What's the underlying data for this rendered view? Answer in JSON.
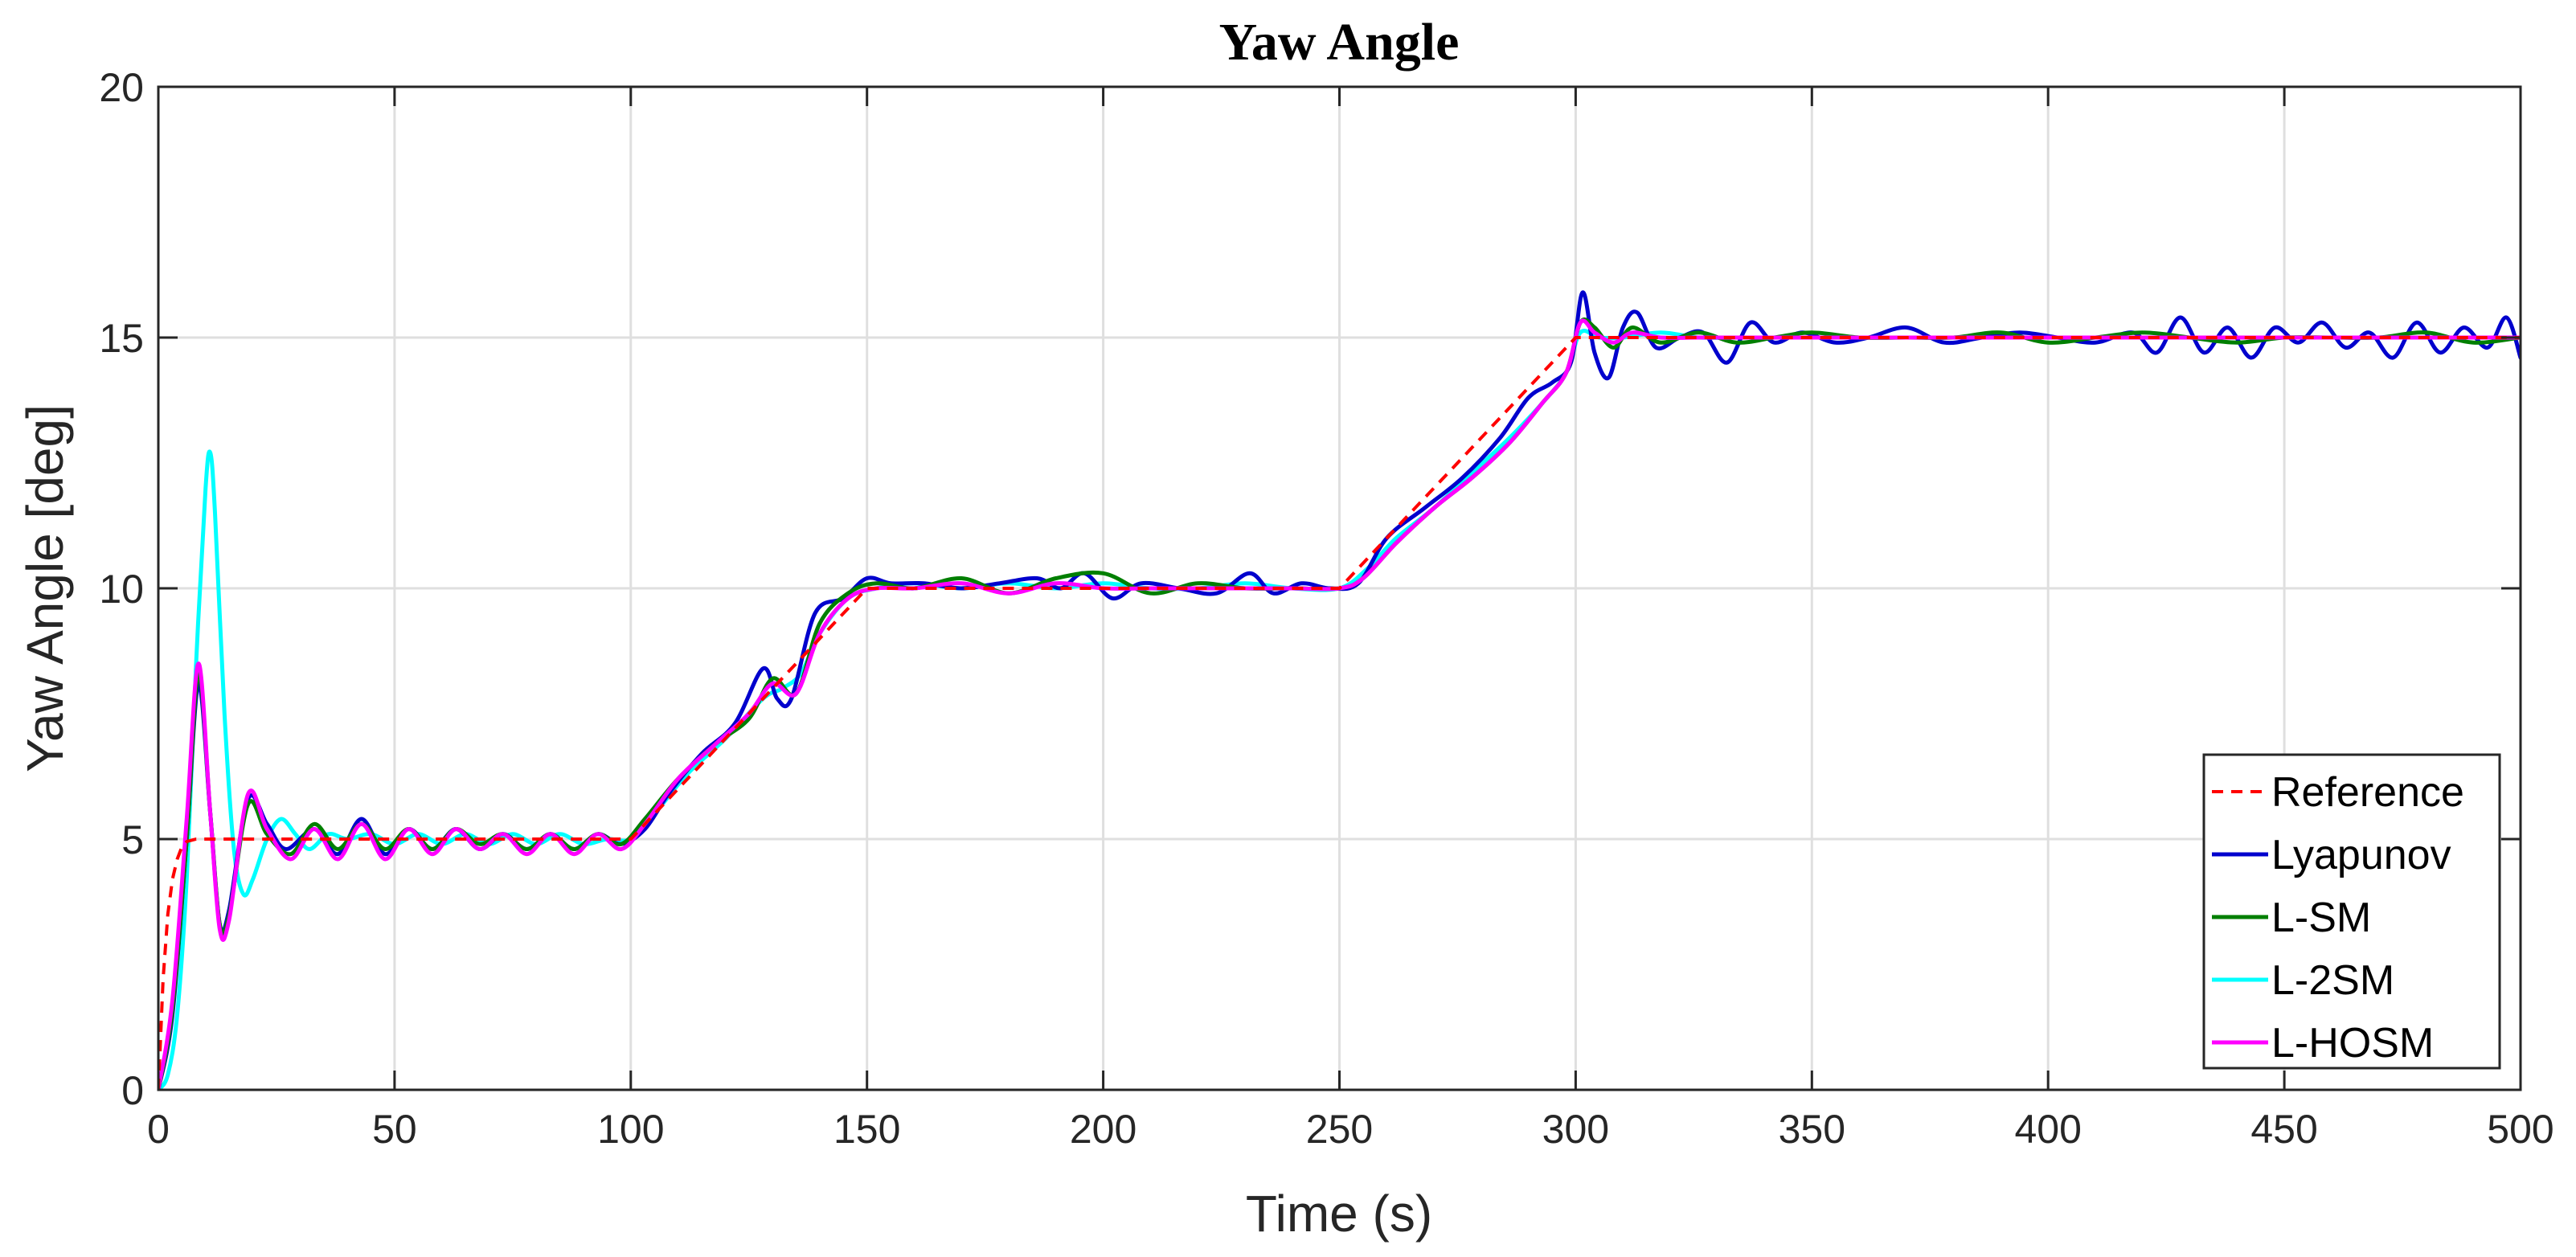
{
  "chart_data": {
    "type": "line",
    "title": "Yaw Angle",
    "xlabel": "Time (s)",
    "ylabel": "Yaw Angle [deg]",
    "xlim": [
      0,
      500
    ],
    "ylim": [
      0,
      20
    ],
    "xticks": [
      0,
      50,
      100,
      150,
      200,
      250,
      300,
      350,
      400,
      450,
      500
    ],
    "yticks": [
      0,
      5,
      10,
      15,
      20
    ],
    "grid": true,
    "legend_position": "bottom-right",
    "series": [
      {
        "name": "Reference",
        "color": "#ff0000",
        "dashed": true,
        "x": [
          0,
          1,
          2,
          3,
          4,
          5,
          6,
          8,
          10,
          100,
          150,
          250,
          300,
          500
        ],
        "y": [
          0,
          2.2,
          3.5,
          4.2,
          4.6,
          4.85,
          4.95,
          5,
          5,
          5,
          10,
          10,
          15,
          15
        ]
      },
      {
        "name": "Lyapunov",
        "color": "#0000cd",
        "x": [
          0,
          3,
          6,
          8.5,
          11,
          13,
          15,
          19,
          23,
          27,
          33,
          38,
          43,
          48,
          53,
          58,
          63,
          68,
          73,
          78,
          83,
          88,
          93,
          98,
          103,
          108,
          115,
          122,
          128,
          131,
          134,
          139,
          145,
          150,
          155,
          162,
          170,
          178,
          186,
          191,
          196,
          202,
          208,
          216,
          224,
          231,
          236,
          242,
          248,
          254,
          260,
          268,
          276,
          284,
          290,
          295,
          299,
          301.5,
          304,
          307,
          310,
          313,
          317,
          322,
          327,
          332,
          337,
          342,
          348,
          355,
          362,
          370,
          378,
          386,
          394,
          402,
          410,
          418,
          423,
          428,
          433,
          438,
          443,
          448,
          453,
          458,
          463,
          468,
          473,
          478,
          483,
          488,
          493,
          497,
          500
        ],
        "y": [
          0,
          1.5,
          5.0,
          8.1,
          5.5,
          3.3,
          3.6,
          5.8,
          5.3,
          4.8,
          5.2,
          4.7,
          5.4,
          4.7,
          5.2,
          4.8,
          5.2,
          4.8,
          5.1,
          4.8,
          5.1,
          4.8,
          5.1,
          4.9,
          5.2,
          5.9,
          6.7,
          7.3,
          8.4,
          7.8,
          7.8,
          9.5,
          9.8,
          10.2,
          10.1,
          10.1,
          10.0,
          10.1,
          10.2,
          10.0,
          10.3,
          9.8,
          10.1,
          10.0,
          9.9,
          10.3,
          9.9,
          10.1,
          10.0,
          10.1,
          11.0,
          11.6,
          12.2,
          13.0,
          13.8,
          14.1,
          14.5,
          15.9,
          14.7,
          14.2,
          15.2,
          15.5,
          14.8,
          15.0,
          15.1,
          14.5,
          15.3,
          14.9,
          15.1,
          14.9,
          15.0,
          15.2,
          14.9,
          15.0,
          15.1,
          15.0,
          14.9,
          15.1,
          14.7,
          15.4,
          14.7,
          15.2,
          14.6,
          15.2,
          14.9,
          15.3,
          14.8,
          15.1,
          14.6,
          15.3,
          14.7,
          15.2,
          14.8,
          15.4,
          14.6
        ]
      },
      {
        "name": "L-SM",
        "color": "#007f00",
        "x": [
          0,
          3,
          6,
          8.5,
          11,
          13,
          15,
          19,
          23,
          28,
          33,
          38,
          43,
          48,
          53,
          58,
          63,
          68,
          73,
          78,
          83,
          88,
          93,
          98,
          103,
          110,
          118,
          125,
          130,
          135,
          140,
          146,
          152,
          160,
          170,
          180,
          190,
          200,
          210,
          220,
          230,
          240,
          250,
          255,
          262,
          270,
          278,
          286,
          293,
          298,
          301,
          304,
          308,
          312,
          318,
          326,
          334,
          342,
          350,
          360,
          370,
          380,
          390,
          400,
          410,
          420,
          430,
          440,
          450,
          460,
          470,
          480,
          490,
          500
        ],
        "y": [
          0,
          1.6,
          5.0,
          8.3,
          5.5,
          3.3,
          3.5,
          5.7,
          5.1,
          4.7,
          5.3,
          4.8,
          5.3,
          4.8,
          5.2,
          4.8,
          5.2,
          4.9,
          5.1,
          4.8,
          5.1,
          4.8,
          5.1,
          4.9,
          5.4,
          6.2,
          6.9,
          7.4,
          8.2,
          7.9,
          9.3,
          9.9,
          10.1,
          10.0,
          10.2,
          9.9,
          10.2,
          10.3,
          9.9,
          10.1,
          10.0,
          10.0,
          10.0,
          10.2,
          10.9,
          11.6,
          12.2,
          12.9,
          13.7,
          14.3,
          15.3,
          15.2,
          14.8,
          15.2,
          14.9,
          15.1,
          14.9,
          15.0,
          15.1,
          15.0,
          15.0,
          15.0,
          15.1,
          14.9,
          15.0,
          15.1,
          15.0,
          14.9,
          15.0,
          15.0,
          15.0,
          15.1,
          14.9,
          15.0
        ]
      },
      {
        "name": "L-2SM",
        "color": "#00ffff",
        "x": [
          0,
          2,
          4,
          6,
          8,
          10,
          11,
          12,
          14,
          16,
          18,
          20,
          23,
          26,
          29,
          32,
          36,
          40,
          45,
          50,
          55,
          60,
          65,
          70,
          75,
          80,
          85,
          90,
          95,
          100,
          105,
          112,
          120,
          128,
          132,
          136,
          140,
          146,
          152,
          160,
          170,
          180,
          190,
          200,
          210,
          220,
          230,
          240,
          250,
          256,
          262,
          270,
          278,
          286,
          293,
          298,
          301,
          305,
          310,
          318,
          326,
          334,
          342,
          350,
          360,
          370,
          380,
          390,
          400,
          410,
          420,
          430,
          440,
          450,
          460,
          470,
          480,
          490,
          500
        ],
        "y": [
          0,
          0.3,
          1.5,
          4.2,
          8.5,
          12.0,
          12.7,
          11.5,
          7.5,
          4.8,
          3.9,
          4.2,
          5.0,
          5.4,
          5.1,
          4.8,
          5.1,
          5.0,
          5.1,
          4.9,
          5.1,
          4.9,
          5.1,
          4.9,
          5.1,
          4.9,
          5.1,
          4.9,
          5.0,
          5.0,
          5.5,
          6.3,
          7.0,
          7.8,
          8.0,
          8.3,
          9.1,
          9.8,
          10.0,
          10.1,
          10.0,
          10.1,
          10.0,
          10.1,
          10.0,
          10.0,
          10.1,
          10.0,
          10.0,
          10.4,
          11.0,
          11.6,
          12.3,
          13.0,
          13.7,
          14.3,
          15.1,
          15.0,
          15.0,
          15.1,
          15.0,
          15.0,
          15.0,
          15.0,
          15.0,
          15.0,
          15.0,
          15.0,
          15.0,
          15.0,
          15.0,
          15.0,
          15.0,
          15.0,
          15.0,
          15.0,
          15.0,
          15.0,
          15.0
        ]
      },
      {
        "name": "L-HOSM",
        "color": "#ff00ff",
        "x": [
          0,
          3,
          6,
          8.5,
          11,
          13,
          15,
          19,
          23,
          28,
          33,
          38,
          43,
          48,
          53,
          58,
          63,
          68,
          73,
          78,
          83,
          88,
          93,
          98,
          103,
          110,
          118,
          125,
          130,
          135,
          140,
          146,
          152,
          160,
          170,
          180,
          190,
          200,
          210,
          220,
          230,
          240,
          250,
          255,
          262,
          270,
          278,
          286,
          293,
          298,
          301,
          304,
          308,
          312,
          318,
          326,
          334,
          342,
          350,
          360,
          370,
          380,
          390,
          400,
          410,
          420,
          430,
          440,
          450,
          460,
          470,
          480,
          490,
          500
        ],
        "y": [
          0,
          1.8,
          5.4,
          8.5,
          5.5,
          3.2,
          3.4,
          5.9,
          5.2,
          4.6,
          5.2,
          4.6,
          5.3,
          4.6,
          5.2,
          4.7,
          5.2,
          4.8,
          5.1,
          4.7,
          5.1,
          4.7,
          5.1,
          4.8,
          5.3,
          6.2,
          6.9,
          7.5,
          8.1,
          7.9,
          9.1,
          9.8,
          10.0,
          10.0,
          10.1,
          9.9,
          10.1,
          10.0,
          10.0,
          10.0,
          10.0,
          10.0,
          10.0,
          10.2,
          10.9,
          11.6,
          12.2,
          12.9,
          13.7,
          14.3,
          15.3,
          15.1,
          14.9,
          15.1,
          15.0,
          15.0,
          15.0,
          15.0,
          15.0,
          15.0,
          15.0,
          15.0,
          15.0,
          15.0,
          15.0,
          15.0,
          15.0,
          15.0,
          15.0,
          15.0,
          15.0,
          15.0,
          15.0,
          15.0
        ]
      }
    ]
  }
}
